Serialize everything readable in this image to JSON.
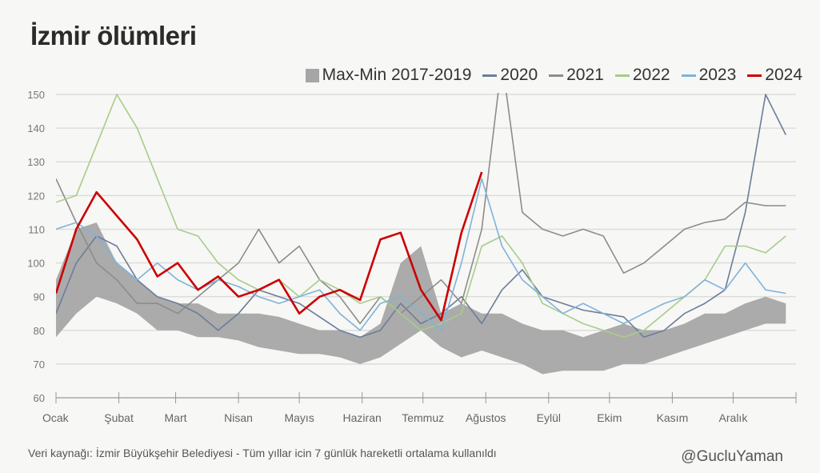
{
  "title": "İzmir ölümleri",
  "source": "Veri kaynağı: İzmir Büyükşehir Belediyesi - Tüm yıllar icin 7 günlük hareketli ortalama kullanıldı",
  "handle": "@GucluYaman",
  "chart_data": {
    "type": "line",
    "title": "İzmir ölümleri",
    "xlabel": "",
    "ylabel": "",
    "ylim": [
      60,
      150
    ],
    "yticks": [
      60,
      70,
      80,
      90,
      100,
      110,
      120,
      130,
      140,
      150
    ],
    "xlim_days": [
      0,
      365
    ],
    "month_labels": [
      "Ocak",
      "Şubat",
      "Mart",
      "Nisan",
      "Mayıs",
      "Haziran",
      "Temmuz",
      "Ağustos",
      "Eylül",
      "Ekim",
      "Kasım",
      "Aralık"
    ],
    "month_start_days": [
      0,
      31,
      59,
      90,
      120,
      151,
      181,
      212,
      243,
      273,
      304,
      334,
      365
    ],
    "grid": true,
    "legend_position": "top-right",
    "x_days": [
      0,
      10,
      20,
      30,
      40,
      50,
      60,
      70,
      80,
      90,
      100,
      110,
      120,
      130,
      140,
      150,
      160,
      170,
      180,
      190,
      200,
      210,
      220,
      230,
      240,
      250,
      260,
      270,
      280,
      290,
      300,
      310,
      320,
      330,
      340,
      350,
      360
    ],
    "band": {
      "name": "Max-Min 2017-2019",
      "color": "#a6a6a6",
      "max": [
        95,
        110,
        112,
        100,
        95,
        90,
        88,
        88,
        85,
        85,
        85,
        84,
        82,
        80,
        80,
        78,
        82,
        100,
        105,
        85,
        88,
        85,
        85,
        82,
        80,
        80,
        78,
        80,
        82,
        80,
        80,
        82,
        85,
        85,
        88,
        90,
        88
      ],
      "min": [
        78,
        85,
        90,
        88,
        85,
        80,
        80,
        78,
        78,
        77,
        75,
        74,
        73,
        73,
        72,
        70,
        72,
        76,
        80,
        75,
        72,
        74,
        72,
        70,
        67,
        68,
        68,
        68,
        70,
        70,
        72,
        74,
        76,
        78,
        80,
        82,
        82
      ]
    },
    "series": [
      {
        "name": "2020",
        "color": "#6b7d99",
        "values": [
          85,
          100,
          108,
          105,
          95,
          90,
          88,
          85,
          80,
          85,
          92,
          90,
          88,
          84,
          80,
          78,
          80,
          88,
          82,
          85,
          90,
          82,
          92,
          98,
          90,
          88,
          86,
          85,
          84,
          78,
          80,
          85,
          88,
          92,
          115,
          150,
          138
        ]
      },
      {
        "name": "2021",
        "color": "#8c8c8c",
        "values": [
          125,
          112,
          100,
          95,
          88,
          88,
          85,
          90,
          95,
          100,
          110,
          100,
          105,
          95,
          90,
          82,
          90,
          85,
          90,
          95,
          88,
          110,
          160,
          115,
          110,
          108,
          110,
          108,
          97,
          100,
          105,
          110,
          112,
          113,
          118,
          117,
          117
        ]
      },
      {
        "name": "2022",
        "color": "#a8cc8c",
        "values": [
          118,
          120,
          135,
          150,
          140,
          125,
          110,
          108,
          100,
          95,
          92,
          95,
          90,
          95,
          92,
          88,
          90,
          85,
          80,
          82,
          85,
          105,
          108,
          100,
          88,
          85,
          82,
          80,
          78,
          80,
          85,
          90,
          95,
          105,
          105,
          103,
          108
        ]
      },
      {
        "name": "2023",
        "color": "#7fb3d9",
        "values": [
          110,
          112,
          108,
          100,
          95,
          100,
          95,
          92,
          95,
          93,
          90,
          88,
          90,
          92,
          85,
          80,
          88,
          90,
          85,
          80,
          100,
          125,
          105,
          95,
          90,
          85,
          88,
          85,
          82,
          85,
          88,
          90,
          95,
          92,
          100,
          92,
          91
        ]
      },
      {
        "name": "2024",
        "color": "#cc0000",
        "values": [
          91,
          110,
          121,
          114,
          107,
          96,
          100,
          92,
          96,
          90,
          92,
          95,
          85,
          90,
          92,
          89,
          107,
          109,
          92,
          83,
          109,
          127
        ]
      }
    ]
  }
}
